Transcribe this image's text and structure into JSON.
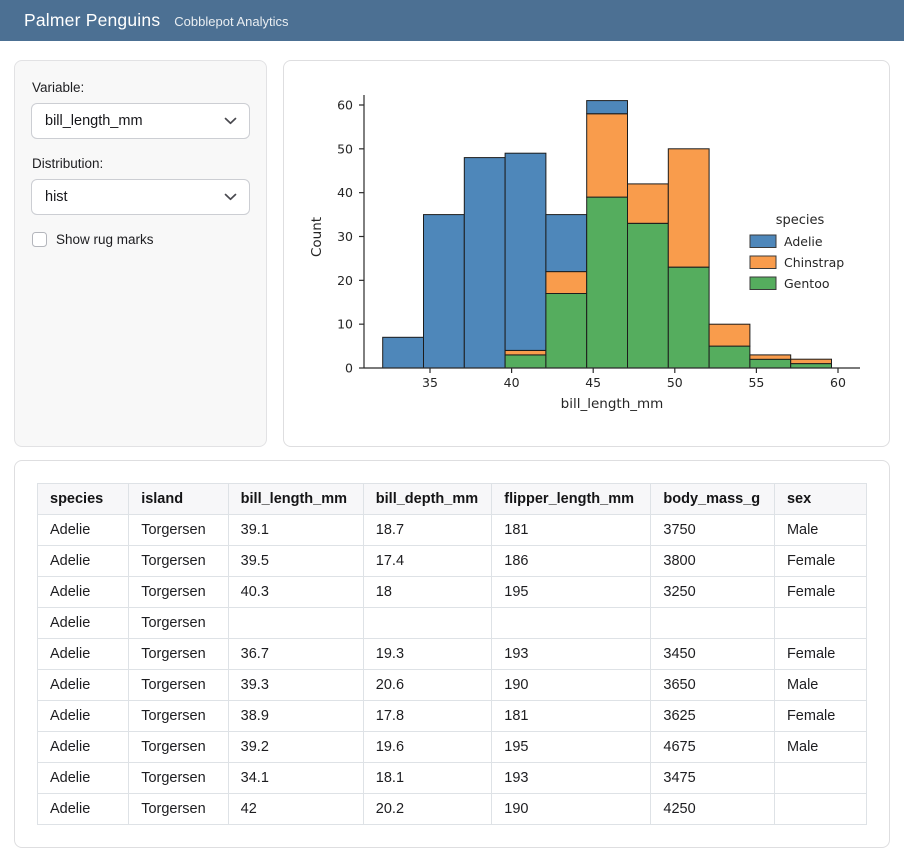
{
  "navbar": {
    "title": "Palmer Penguins",
    "subtitle": "Cobblepot Analytics",
    "bg_color": "#4c7093"
  },
  "sidebar": {
    "variable_label": "Variable:",
    "variable_value": "bill_length_mm",
    "distribution_label": "Distribution:",
    "distribution_value": "hist",
    "rug_label": "Show rug marks",
    "rug_checked": false
  },
  "chart_data": {
    "type": "bar",
    "subtype": "stacked-histogram",
    "title": "",
    "xlabel": "bill_length_mm",
    "ylabel": "Count",
    "bin_edges": [
      32.1,
      34.6,
      37.1,
      39.6,
      42.1,
      44.6,
      47.1,
      49.6,
      52.1,
      54.6,
      57.1,
      59.6
    ],
    "series": [
      {
        "name": "Gentoo",
        "color": "#55ad5e",
        "values": [
          0,
          0,
          0,
          3,
          17,
          39,
          33,
          23,
          5,
          2,
          1
        ]
      },
      {
        "name": "Chinstrap",
        "color": "#f99c4c",
        "values": [
          0,
          0,
          0,
          1,
          5,
          19,
          9,
          27,
          5,
          1,
          1
        ]
      },
      {
        "name": "Adelie",
        "color": "#4e87ba",
        "values": [
          7,
          35,
          48,
          45,
          13,
          3,
          0,
          0,
          0,
          0,
          0
        ]
      }
    ],
    "stack_totals": [
      7,
      35,
      48,
      49,
      35,
      61,
      42,
      50,
      10,
      3,
      2
    ],
    "stack_order": "bottom to top: Gentoo, Chinstrap, Adelie",
    "x_ticks": [
      35,
      40,
      45,
      50,
      55,
      60
    ],
    "y_ticks": [
      0,
      10,
      20,
      30,
      40,
      50,
      60
    ],
    "xlim": [
      30.7,
      61.0
    ],
    "ylim": [
      0,
      64
    ],
    "grid": false,
    "legend": {
      "title": "species",
      "position": "center right",
      "entries": [
        "Adelie",
        "Chinstrap",
        "Gentoo"
      ],
      "colors": {
        "Adelie": "#4e87ba",
        "Chinstrap": "#f99c4c",
        "Gentoo": "#55ad5e"
      }
    },
    "bar_edge_color": "#1c1c1c"
  },
  "table": {
    "columns": [
      "species",
      "island",
      "bill_length_mm",
      "bill_depth_mm",
      "flipper_length_mm",
      "body_mass_g",
      "sex"
    ],
    "rows": [
      [
        "Adelie",
        "Torgersen",
        "39.1",
        "18.7",
        "181",
        "3750",
        "Male"
      ],
      [
        "Adelie",
        "Torgersen",
        "39.5",
        "17.4",
        "186",
        "3800",
        "Female"
      ],
      [
        "Adelie",
        "Torgersen",
        "40.3",
        "18",
        "195",
        "3250",
        "Female"
      ],
      [
        "Adelie",
        "Torgersen",
        "",
        "",
        "",
        "",
        ""
      ],
      [
        "Adelie",
        "Torgersen",
        "36.7",
        "19.3",
        "193",
        "3450",
        "Female"
      ],
      [
        "Adelie",
        "Torgersen",
        "39.3",
        "20.6",
        "190",
        "3650",
        "Male"
      ],
      [
        "Adelie",
        "Torgersen",
        "38.9",
        "17.8",
        "181",
        "3625",
        "Female"
      ],
      [
        "Adelie",
        "Torgersen",
        "39.2",
        "19.6",
        "195",
        "4675",
        "Male"
      ],
      [
        "Adelie",
        "Torgersen",
        "34.1",
        "18.1",
        "193",
        "3475",
        ""
      ],
      [
        "Adelie",
        "Torgersen",
        "42",
        "20.2",
        "190",
        "4250",
        ""
      ]
    ]
  }
}
